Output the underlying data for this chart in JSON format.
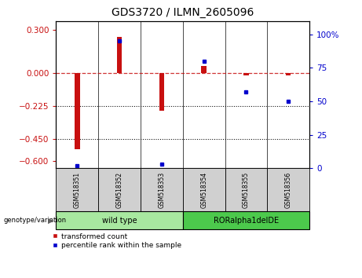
{
  "title": "GDS3720 / ILMN_2605096",
  "samples": [
    "GSM518351",
    "GSM518352",
    "GSM518353",
    "GSM518354",
    "GSM518355",
    "GSM518356"
  ],
  "red_bars": [
    -0.52,
    0.25,
    -0.255,
    0.05,
    -0.012,
    -0.012
  ],
  "blue_dots_pct": [
    2,
    95,
    3,
    80,
    57,
    50
  ],
  "ylim_left": [
    -0.65,
    0.36
  ],
  "ylim_right": [
    0,
    110.0
  ],
  "yticks_left": [
    0.3,
    0.0,
    -0.225,
    -0.45,
    -0.6
  ],
  "yticks_right": [
    100,
    75,
    50,
    25,
    0
  ],
  "hline_y": 0.0,
  "dotted_lines": [
    -0.225,
    -0.45
  ],
  "group1_label": "wild type",
  "group2_label": "RORalpha1delDE",
  "group1_color": "#A8E8A0",
  "group2_color": "#4CC94C",
  "bar_color": "#C81010",
  "dot_color": "#0000CC",
  "legend_red_label": "transformed count",
  "legend_blue_label": "percentile rank within the sample",
  "genotype_label": "genotype/variation",
  "bar_width": 0.12
}
